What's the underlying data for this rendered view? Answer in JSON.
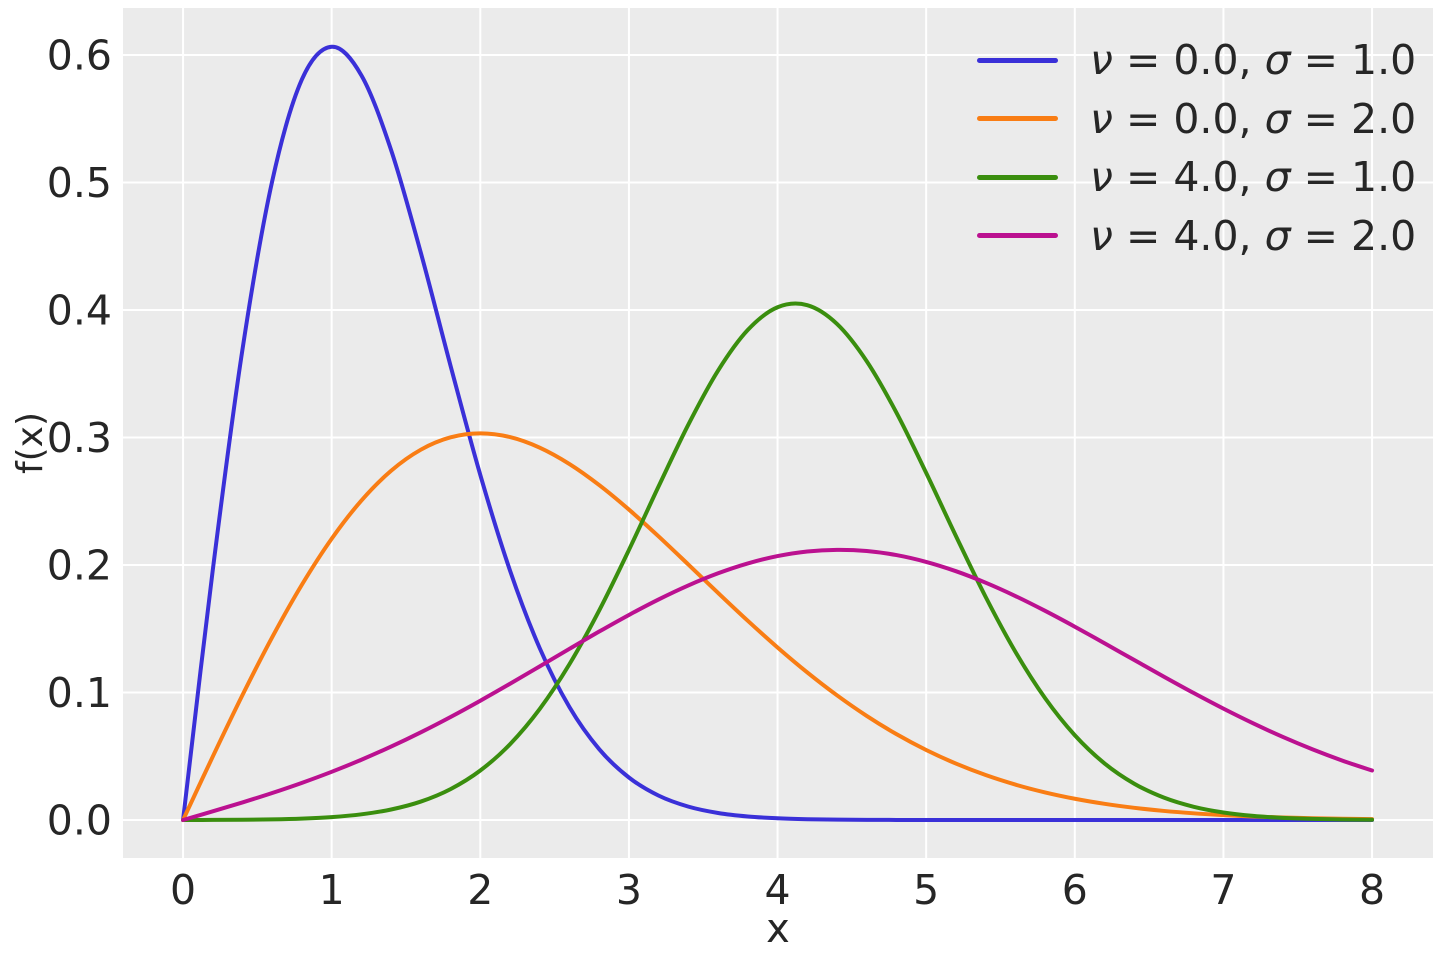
{
  "figure": {
    "background": "#ffffff",
    "panel_background": "#ebebeb",
    "grid_color": "#ffffff",
    "text_color": "#262626"
  },
  "chart_data": {
    "type": "line",
    "title": "",
    "xlabel": "x",
    "ylabel": "f(x)",
    "grid": true,
    "legend_position": "upper right",
    "xlim": [
      -0.404,
      8.41
    ],
    "ylim": [
      -0.0298,
      0.6369
    ],
    "xticks": {
      "values": [
        0,
        1,
        2,
        3,
        4,
        5,
        6,
        7,
        8
      ],
      "labels": [
        "0",
        "1",
        "2",
        "3",
        "4",
        "5",
        "6",
        "7",
        "8"
      ]
    },
    "yticks": {
      "values": [
        0,
        0.1,
        0.2,
        0.3,
        0.4,
        0.5,
        0.6
      ],
      "labels": [
        "0.0",
        "0.1",
        "0.2",
        "0.3",
        "0.4",
        "0.5",
        "0.6"
      ]
    },
    "legend_format": {
      "nu_symbol": "ν",
      "sigma_symbol": "σ",
      "eq": " = ",
      "sep": ", "
    },
    "x": [
      0,
      0.2,
      0.4,
      0.6,
      0.8,
      1,
      1.2,
      1.4,
      1.6,
      1.8,
      2,
      2.2,
      2.4,
      2.6,
      2.8,
      3,
      3.2,
      3.4,
      3.6,
      3.8,
      4,
      4.2,
      4.4,
      4.6,
      4.8,
      5,
      5.2,
      5.4,
      5.6,
      5.8,
      6,
      6.2,
      6.4,
      6.6,
      6.8,
      7,
      7.2,
      7.4,
      7.6,
      7.8,
      8
    ],
    "series": [
      {
        "label": "ν = 0.0, σ = 1.0",
        "nu": "0.0",
        "sigma": "1.0",
        "color": "#3a30d8",
        "values": [
          0,
          0.19604,
          0.36925,
          0.50116,
          0.58092,
          0.60653,
          0.5841,
          0.52544,
          0.44486,
          0.35622,
          0.27067,
          0.19563,
          0.13472,
          0.08852,
          0.05555,
          0.03333,
          0.01912,
          0.0105,
          0.00552,
          0.00278,
          0.00134,
          0.00062,
          0.00028,
          0.00012,
          5e-05,
          2e-05,
          1e-05,
          0,
          0,
          0,
          0,
          0,
          0,
          0,
          0,
          0,
          0,
          0,
          0,
          0,
          0
        ]
      },
      {
        "label": "ν = 0.0, σ = 2.0",
        "nu": "0.0",
        "sigma": "2.0",
        "color": "#f97d14",
        "values": [
          0,
          0.04975,
          0.09802,
          0.1434,
          0.18462,
          0.22062,
          0.25058,
          0.27395,
          0.29046,
          0.30014,
          0.30327,
          0.30034,
          0.29205,
          0.27921,
          0.26272,
          0.24349,
          0.22243,
          0.20038,
          0.17811,
          0.15625,
          0.13534,
          0.11576,
          0.09781,
          0.08166,
          0.06736,
          0.05492,
          0.04426,
          0.03526,
          0.02778,
          0.02163,
          0.01666,
          0.01269,
          0.00956,
          0.00712,
          0.00525,
          0.00383,
          0.00276,
          0.00197,
          0.00139,
          0.00097,
          0.00067
        ]
      },
      {
        "label": "ν = 4.0, σ = 1.0",
        "nu": "4.0",
        "sigma": "1.0",
        "color": "#3a8e0e",
        "values": [
          0,
          8e-05,
          0.00022,
          0.00051,
          0.00112,
          0.0023,
          0.00446,
          0.00824,
          0.01447,
          0.02425,
          0.03882,
          0.05945,
          0.08711,
          0.12225,
          0.16439,
          0.21183,
          0.26175,
          0.31018,
          0.35253,
          0.3844,
          0.40218,
          0.40379,
          0.38908,
          0.35984,
          0.31947,
          0.27227,
          0.22278,
          0.175,
          0.132,
          0.09559,
          0.06648,
          0.04439,
          0.02847,
          0.01753,
          0.01037,
          0.00589,
          0.00321,
          0.00168,
          0.00085,
          0.00041,
          0.00019
        ]
      },
      {
        "label": "ν = 4.0, σ = 2.0",
        "nu": "4.0",
        "sigma": "2.0",
        "color": "#bb1190",
        "values": [
          0,
          0.0068,
          0.0138,
          0.02119,
          0.02915,
          0.0378,
          0.04727,
          0.05759,
          0.06879,
          0.08081,
          0.09356,
          0.10686,
          0.12052,
          0.13427,
          0.14782,
          0.16084,
          0.17302,
          0.184,
          0.19351,
          0.20125,
          0.207,
          0.21061,
          0.2119,
          0.21101,
          0.20779,
          0.20244,
          0.19516,
          0.18614,
          0.17569,
          0.16407,
          0.15162,
          0.13864,
          0.12547,
          0.11237,
          0.09959,
          0.08734,
          0.07582,
          0.06514,
          0.05539,
          0.04661,
          0.03882
        ]
      }
    ]
  }
}
